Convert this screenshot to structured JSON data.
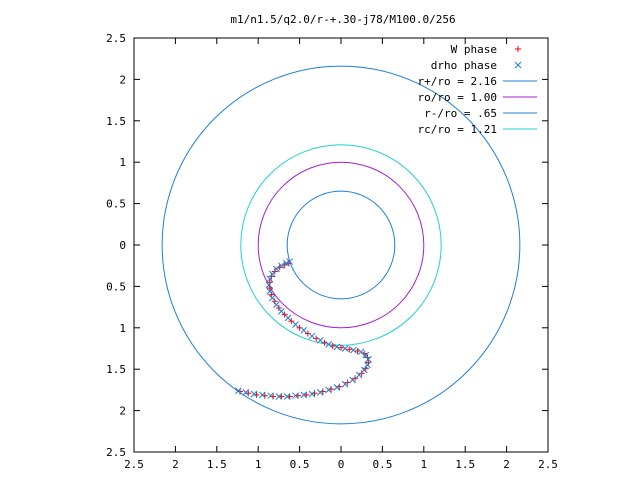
{
  "chart_data": {
    "type": "scatter",
    "title": "m1/n1.5/q2.0/r-+.30-j78/M100.0/256",
    "xlabel": "",
    "ylabel": "",
    "xlim": [
      -2.5,
      2.5
    ],
    "ylim": [
      -2.5,
      2.5
    ],
    "x_ticks": [
      -2.5,
      -2,
      -1.5,
      -1,
      -0.5,
      0,
      0.5,
      1,
      1.5,
      2,
      2.5
    ],
    "y_ticks": [
      -2.5,
      -2,
      -1.5,
      -1,
      -0.5,
      0,
      0.5,
      1,
      1.5,
      2,
      2.5
    ],
    "x_tick_labels": [
      "2.5",
      "2",
      "1.5",
      "1",
      "0.5",
      "0",
      "0.5",
      "1",
      "1.5",
      "2",
      "2.5"
    ],
    "y_tick_labels": [
      "2.5",
      "2",
      "1.5",
      "1",
      "0.5",
      "0",
      "0.5",
      "1",
      "1.5",
      "2",
      "2.5"
    ],
    "grid": false,
    "legend_position": "top-right",
    "series": [
      {
        "name": "W phase",
        "kind": "points",
        "marker": "plus",
        "color": "#ff0000",
        "x": [
          -1.22,
          -1.12,
          -1.02,
          -0.92,
          -0.82,
          -0.72,
          -0.62,
          -0.52,
          -0.42,
          -0.32,
          -0.22,
          -0.12,
          -0.02,
          0.08,
          0.17,
          0.25,
          0.3,
          0.33,
          0.32,
          0.28,
          0.2,
          0.1,
          0.0,
          -0.1,
          -0.2,
          -0.3,
          -0.4,
          -0.5,
          -0.6,
          -0.68,
          -0.75,
          -0.8,
          -0.84,
          -0.86,
          -0.86,
          -0.84,
          -0.8,
          -0.74,
          -0.68,
          -0.63
        ],
        "y": [
          -1.77,
          -1.79,
          -1.81,
          -1.82,
          -1.83,
          -1.83,
          -1.83,
          -1.82,
          -1.81,
          -1.79,
          -1.77,
          -1.74,
          -1.71,
          -1.66,
          -1.61,
          -1.55,
          -1.49,
          -1.42,
          -1.36,
          -1.31,
          -1.28,
          -1.26,
          -1.24,
          -1.22,
          -1.18,
          -1.13,
          -1.07,
          -1.0,
          -0.92,
          -0.84,
          -0.76,
          -0.68,
          -0.6,
          -0.52,
          -0.45,
          -0.38,
          -0.32,
          -0.27,
          -0.24,
          -0.22
        ]
      },
      {
        "name": "drho phase",
        "kind": "points",
        "marker": "cross",
        "color": "#1e7fd6",
        "x": [
          -1.24,
          -1.15,
          -1.05,
          -0.95,
          -0.85,
          -0.75,
          -0.65,
          -0.55,
          -0.45,
          -0.35,
          -0.25,
          -0.15,
          -0.05,
          0.05,
          0.14,
          0.22,
          0.28,
          0.32,
          0.33,
          0.3,
          0.24,
          0.15,
          0.05,
          -0.05,
          -0.15,
          -0.25,
          -0.35,
          -0.45,
          -0.55,
          -0.64,
          -0.72,
          -0.78,
          -0.83,
          -0.86,
          -0.87,
          -0.86,
          -0.83,
          -0.78,
          -0.72,
          -0.66,
          -0.62
        ],
        "y": [
          -1.76,
          -1.78,
          -1.8,
          -1.81,
          -1.82,
          -1.83,
          -1.83,
          -1.82,
          -1.81,
          -1.8,
          -1.78,
          -1.75,
          -1.72,
          -1.68,
          -1.63,
          -1.57,
          -1.51,
          -1.45,
          -1.38,
          -1.33,
          -1.29,
          -1.27,
          -1.25,
          -1.23,
          -1.2,
          -1.15,
          -1.1,
          -1.03,
          -0.96,
          -0.88,
          -0.8,
          -0.72,
          -0.64,
          -0.56,
          -0.48,
          -0.41,
          -0.35,
          -0.29,
          -0.25,
          -0.22,
          -0.2
        ]
      },
      {
        "name": "r+/ro = 2.16",
        "kind": "circle",
        "radius": 2.16,
        "color": "#1e7fd6"
      },
      {
        "name": "ro/ro = 1.00",
        "kind": "circle",
        "radius": 1.0,
        "color": "#a020d0"
      },
      {
        "name": "r-/ro = .65",
        "kind": "circle",
        "radius": 0.65,
        "color": "#1e7fd6"
      },
      {
        "name": "rc/ro = 1.21",
        "kind": "circle",
        "radius": 1.21,
        "color": "#20d0d0"
      }
    ]
  }
}
